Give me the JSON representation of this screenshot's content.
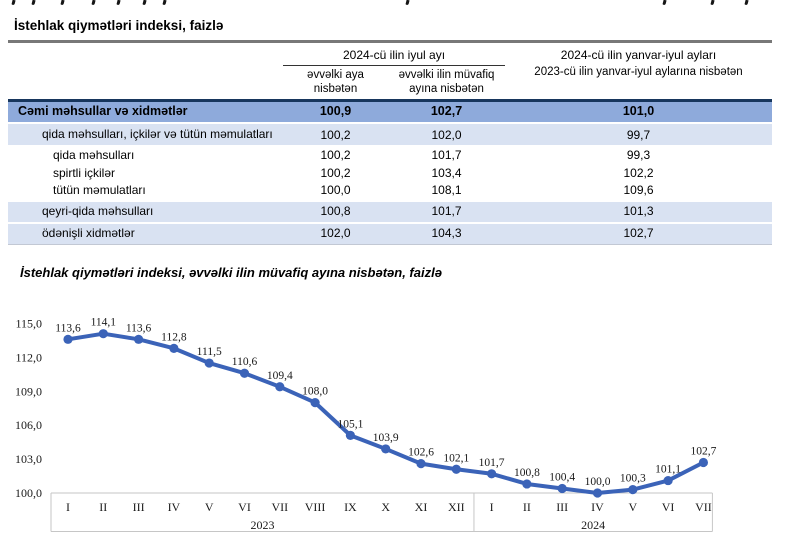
{
  "table": {
    "title": "İstehlak qiymətləri indeksi, faizlə",
    "header": {
      "group_july": "2024-cü ilin iyul ayı",
      "sub_prev_month": "əvvəlki aya nisbətən",
      "sub_prev_year_month": "əvvəlki ilin müvafiq ayına nisbətən",
      "jan_july_line1": "2024-cü ilin yanvar-iyul ayları",
      "jan_july_line2": "2023-cü ilin yanvar-iyul aylarına nisbətən"
    },
    "rows": [
      {
        "label": "Cəmi məhsullar və xidmətlər",
        "values": [
          "100,9",
          "102,7",
          "101,0"
        ]
      },
      {
        "label": "qida məhsulları, içkilər və tütün məmulatları",
        "values": [
          "100,2",
          "102,0",
          "99,7"
        ]
      },
      {
        "label": "qida məhsulları",
        "values": [
          "100,2",
          "101,7",
          "99,3"
        ]
      },
      {
        "label": "spirtli içkilər",
        "values": [
          "100,2",
          "103,4",
          "102,2"
        ]
      },
      {
        "label": "tütün məmulatları",
        "values": [
          "100,0",
          "108,1",
          "109,6"
        ]
      },
      {
        "label": "qeyri-qida məhsulları",
        "values": [
          "100,8",
          "101,7",
          "101,3"
        ]
      },
      {
        "label": "ödənişli xidmətlər",
        "values": [
          "102,0",
          "104,3",
          "102,7"
        ]
      }
    ]
  },
  "chart_data": {
    "type": "line",
    "title": "İstehlak qiymətləri indeksi, əvvəlki ilin müvafiq ayına nisbətən, faizlə",
    "categories": [
      "I",
      "II",
      "III",
      "IV",
      "V",
      "VI",
      "VII",
      "VIII",
      "IX",
      "X",
      "XI",
      "XII",
      "I",
      "II",
      "III",
      "IV",
      "V",
      "VI",
      "VII"
    ],
    "year_groups": [
      {
        "label": "2023",
        "count": 12
      },
      {
        "label": "2024",
        "count": 7
      }
    ],
    "values": [
      113.6,
      114.1,
      113.6,
      112.8,
      111.5,
      110.6,
      109.4,
      108.0,
      105.1,
      103.9,
      102.6,
      102.1,
      101.7,
      100.8,
      100.4,
      100.0,
      100.3,
      101.1,
      102.7
    ],
    "point_labels": [
      "113,6",
      "114,1",
      "113,6",
      "112,8",
      "111,5",
      "110,6",
      "109,4",
      "108,0",
      "105,1",
      "103,9",
      "102,6",
      "102,1",
      "101,7",
      "100,8",
      "100,4",
      "100,0",
      "100,3",
      "101,1",
      "102,7"
    ],
    "y_ticks": [
      "100,0",
      "103,0",
      "106,0",
      "109,0",
      "112,0",
      "115,0"
    ],
    "ylim": [
      100,
      115
    ],
    "grid": false,
    "legend": false,
    "line_color": "#3B63B8"
  }
}
